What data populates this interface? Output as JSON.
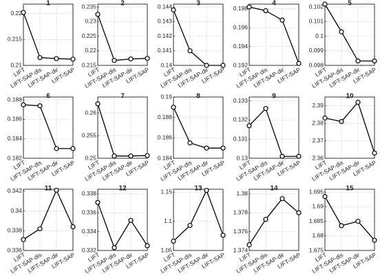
{
  "chart_data": [
    {
      "type": "line",
      "title": "1",
      "categories": [
        "LIFT",
        "LIFT-SAP-dis",
        "LIFT-SAP-dir",
        "LIFT-SAP"
      ],
      "values": [
        0.2202,
        0.2115,
        0.2113,
        0.2112
      ],
      "color": "#000000",
      "ylim": [
        0.21,
        0.2218
      ],
      "yticks": [
        0.21,
        0.215,
        0.22
      ],
      "grid": true
    },
    {
      "type": "line",
      "title": "2",
      "categories": [
        "LIFT",
        "LIFT-SAP-dis",
        "LIFT-SAP-dir",
        "LIFT-SAP"
      ],
      "values": [
        0.2325,
        0.2167,
        0.2172,
        0.2174
      ],
      "color": "#000000",
      "ylim": [
        0.215,
        0.236
      ],
      "yticks": [
        0.215,
        0.22,
        0.225,
        0.23,
        0.235
      ],
      "grid": true
    },
    {
      "type": "line",
      "title": "3",
      "categories": [
        "LIFT",
        "LIFT-SAP-dis",
        "LIFT-SAP-dir",
        "LIFT-SAP"
      ],
      "values": [
        0.1438,
        0.141,
        0.14,
        0.14
      ],
      "color": "#000000",
      "ylim": [
        0.14,
        0.1442
      ],
      "yticks": [
        0.14,
        0.141,
        0.142,
        0.143,
        0.144
      ],
      "grid": true
    },
    {
      "type": "line",
      "title": "4",
      "categories": [
        "LIFT",
        "LIFT-SAP-dis",
        "LIFT-SAP-dir",
        "LIFT-SAP"
      ],
      "values": [
        0.1982,
        0.1978,
        0.1968,
        0.1922
      ],
      "color": "#000000",
      "ylim": [
        0.192,
        0.1985
      ],
      "yticks": [
        0.192,
        0.194,
        0.196,
        0.198
      ],
      "grid": true
    },
    {
      "type": "line",
      "title": "5",
      "categories": [
        "LIFT",
        "LIFT-SAP-dis",
        "LIFT-SAP-dir",
        "LIFT-SAP"
      ],
      "values": [
        0.1022,
        0.1003,
        0.0983,
        0.0983
      ],
      "color": "#000000",
      "ylim": [
        0.098,
        0.1022
      ],
      "yticks": [
        0.098,
        0.099,
        0.1,
        0.101,
        0.102
      ],
      "grid": true
    },
    {
      "type": "line",
      "title": "6",
      "categories": [
        "LIFT",
        "LIFT-SAP-dis",
        "LIFT-SAP-dir",
        "LIFT-SAP"
      ],
      "values": [
        0.1875,
        0.1874,
        0.183,
        0.183
      ],
      "color": "#000000",
      "ylim": [
        0.182,
        0.1883
      ],
      "yticks": [
        0.182,
        0.184,
        0.186,
        0.188
      ],
      "grid": true
    },
    {
      "type": "line",
      "title": "7",
      "categories": [
        "LIFT",
        "LIFT-SAP-dis",
        "LIFT-SAP-dir",
        "LIFT-SAP"
      ],
      "values": [
        0.262,
        0.2505,
        0.2505,
        0.2506
      ],
      "color": "#000000",
      "ylim": [
        0.25,
        0.2635
      ],
      "yticks": [
        0.25,
        0.255,
        0.26
      ],
      "grid": true
    },
    {
      "type": "line",
      "title": "8",
      "categories": [
        "LIFT",
        "LIFT-SAP-dis",
        "LIFT-SAP-dir",
        "LIFT-SAP"
      ],
      "values": [
        0.189,
        0.1855,
        0.185,
        0.185
      ],
      "color": "#000000",
      "ylim": [
        0.184,
        0.19
      ],
      "yticks": [
        0.184,
        0.186,
        0.188,
        0.19
      ],
      "grid": true
    },
    {
      "type": "line",
      "title": "9",
      "categories": [
        "LIFT",
        "LIFT-SAP-dis",
        "LIFT-SAP-dir",
        "LIFT-SAP"
      ],
      "values": [
        0.1317,
        0.1326,
        0.1301,
        0.1301
      ],
      "color": "#000000",
      "ylim": [
        0.13,
        0.1332
      ],
      "yticks": [
        0.13,
        0.131,
        0.132,
        0.133
      ],
      "grid": true
    },
    {
      "type": "line",
      "title": "10",
      "categories": [
        "LIFT",
        "LIFT-SAP-dis",
        "LIFT-SAP-dir",
        "LIFT-SAP"
      ],
      "values": [
        2.383,
        2.381,
        2.392,
        2.363
      ],
      "color": "#000000",
      "ylim": [
        2.36,
        2.395
      ],
      "yticks": [
        2.36,
        2.37,
        2.38,
        2.39
      ],
      "grid": true
    },
    {
      "type": "line",
      "title": "11",
      "categories": [
        "LIFT",
        "LIFT-SAP-dis",
        "LIFT-SAP-dir",
        "LIFT-SAP"
      ],
      "values": [
        0.3371,
        0.3382,
        0.3421,
        0.3384
      ],
      "color": "#000000",
      "ylim": [
        0.336,
        0.3422
      ],
      "yticks": [
        0.336,
        0.338,
        0.34,
        0.342
      ],
      "grid": true
    },
    {
      "type": "line",
      "title": "12",
      "categories": [
        "LIFT",
        "LIFT-SAP-dis",
        "LIFT-SAP-dir",
        "LIFT-SAP"
      ],
      "values": [
        0.3371,
        0.3323,
        0.3352,
        0.3325
      ],
      "color": "#000000",
      "ylim": [
        0.332,
        0.3385
      ],
      "yticks": [
        0.332,
        0.334,
        0.336,
        0.338
      ],
      "grid": true
    },
    {
      "type": "line",
      "title": "13",
      "categories": [
        "LIFT",
        "LIFT-SAP-dis",
        "LIFT-SAP-dir",
        "LIFT-SAP"
      ],
      "values": [
        1.066,
        1.093,
        1.153,
        1.076
      ],
      "color": "#000000",
      "ylim": [
        1.05,
        1.155
      ],
      "yticks": [
        1.05,
        1.1,
        1.15
      ],
      "grid": true
    },
    {
      "type": "line",
      "title": "14",
      "categories": [
        "LIFT",
        "LIFT-SAP-dis",
        "LIFT-SAP-dir",
        "LIFT-SAP"
      ],
      "values": [
        1.3746,
        1.3773,
        1.3795,
        1.378
      ],
      "color": "#000000",
      "ylim": [
        1.374,
        1.3805
      ],
      "yticks": [
        1.374,
        1.376,
        1.378,
        1.38
      ],
      "grid": true
    },
    {
      "type": "line",
      "title": "15",
      "categories": [
        "LIFT",
        "LIFT-SAP-dis",
        "LIFT-SAP-dir",
        "LIFT-SAP"
      ],
      "values": [
        1.6935,
        1.6835,
        1.685,
        1.6785
      ],
      "color": "#000000",
      "ylim": [
        1.675,
        1.696
      ],
      "yticks": [
        1.675,
        1.68,
        1.685,
        1.69,
        1.695
      ],
      "grid": true
    }
  ]
}
